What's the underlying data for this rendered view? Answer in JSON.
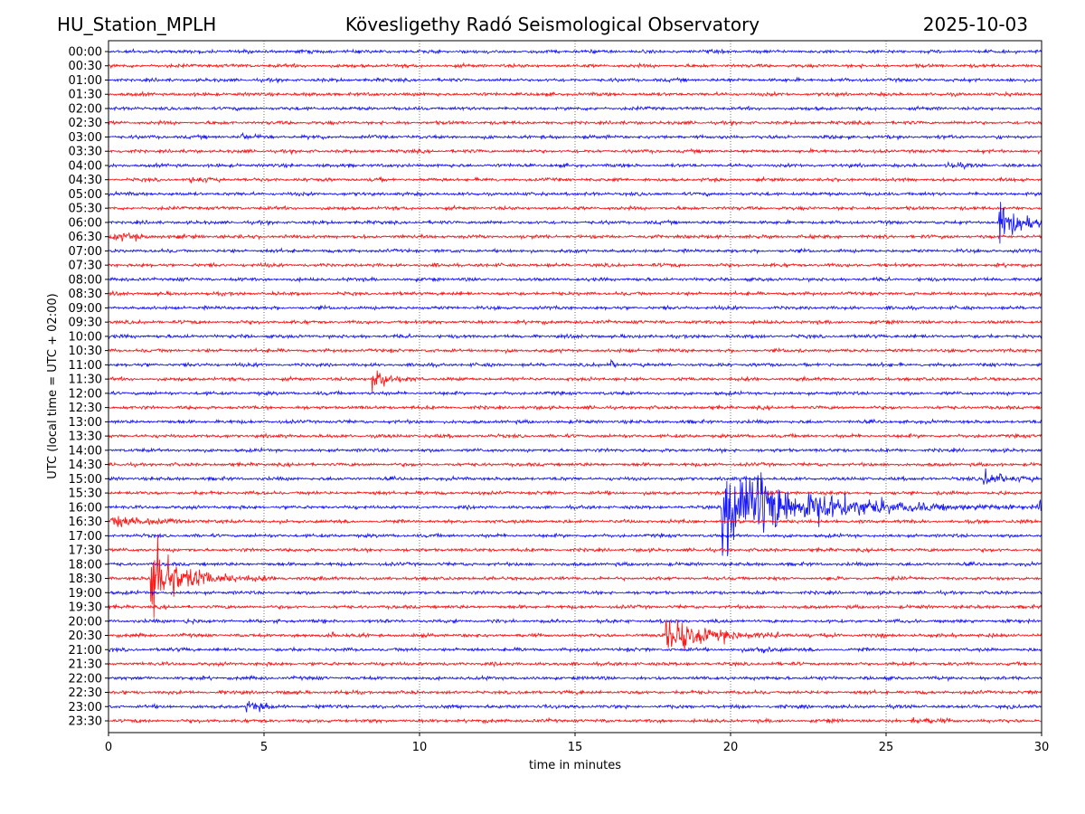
{
  "header": {
    "station": "HU_Station_MPLH",
    "observatory": "Kövesligethy Radó Seismological Observatory",
    "date": "2025-10-03"
  },
  "chart_data": {
    "type": "line",
    "subtype": "helicorder",
    "xlabel": "time in minutes",
    "ylabel": "UTC (local time = UTC + 02:00)",
    "xlim": [
      0,
      30
    ],
    "xticks": [
      0,
      5,
      10,
      15,
      20,
      25,
      30
    ],
    "grid": "vertical dotted",
    "row_labels": [
      "00:00",
      "00:30",
      "01:00",
      "01:30",
      "02:00",
      "02:30",
      "03:00",
      "03:30",
      "04:00",
      "04:30",
      "05:00",
      "05:30",
      "06:00",
      "06:30",
      "07:00",
      "07:30",
      "08:00",
      "08:30",
      "09:00",
      "09:30",
      "10:00",
      "10:30",
      "11:00",
      "11:30",
      "12:00",
      "12:30",
      "13:00",
      "13:30",
      "14:00",
      "14:30",
      "15:00",
      "15:30",
      "16:00",
      "16:30",
      "17:00",
      "17:30",
      "18:00",
      "18:30",
      "19:00",
      "19:30",
      "20:00",
      "20:30",
      "21:00",
      "21:30",
      "22:00",
      "22:30",
      "23:00",
      "23:30"
    ],
    "colors": [
      "#0000ff",
      "#ff0000"
    ],
    "noise_amplitude_rows": 0.12,
    "events": [
      {
        "row": "03:00",
        "start_min": 4.2,
        "amp_rows": 0.4,
        "decay_min": 0.3
      },
      {
        "row": "04:00",
        "start_min": 26.9,
        "amp_rows": 0.45,
        "decay_min": 0.3
      },
      {
        "row": "04:30",
        "start_min": 2.6,
        "amp_rows": 0.4,
        "decay_min": 0.4
      },
      {
        "row": "06:00",
        "start_min": 28.6,
        "amp_rows": 2.8,
        "decay_min": 0.7
      },
      {
        "row": "06:30",
        "start_min": 0.0,
        "amp_rows": 0.45,
        "decay_min": 0.8
      },
      {
        "row": "11:00",
        "start_min": 16.1,
        "amp_rows": 0.35,
        "decay_min": 0.3
      },
      {
        "row": "11:30",
        "start_min": 8.45,
        "amp_rows": 2.4,
        "decay_min": 0.35
      },
      {
        "row": "15:00",
        "start_min": 28.1,
        "amp_rows": 1.0,
        "decay_min": 0.6
      },
      {
        "row": "16:00",
        "start_min": 19.7,
        "amp_rows": 7.0,
        "decay_min": 2.2
      },
      {
        "row": "16:00",
        "start_min": 29.9,
        "amp_rows": 1.3,
        "decay_min": 0.3
      },
      {
        "row": "16:30",
        "start_min": 0.0,
        "amp_rows": 0.7,
        "decay_min": 1.0
      },
      {
        "row": "18:30",
        "start_min": 1.3,
        "amp_rows": 6.0,
        "decay_min": 0.9
      },
      {
        "row": "20:00",
        "start_min": 2.4,
        "amp_rows": 0.4,
        "decay_min": 0.3
      },
      {
        "row": "20:30",
        "start_min": 7.15,
        "amp_rows": 0.6,
        "decay_min": 0.15
      },
      {
        "row": "20:30",
        "start_min": 17.9,
        "amp_rows": 2.6,
        "decay_min": 1.2
      },
      {
        "row": "21:00",
        "start_min": 20.8,
        "amp_rows": 0.35,
        "decay_min": 0.5
      },
      {
        "row": "23:00",
        "start_min": 4.4,
        "amp_rows": 0.9,
        "decay_min": 0.4
      },
      {
        "row": "23:30",
        "start_min": 25.8,
        "amp_rows": 0.35,
        "decay_min": 0.6
      }
    ]
  }
}
